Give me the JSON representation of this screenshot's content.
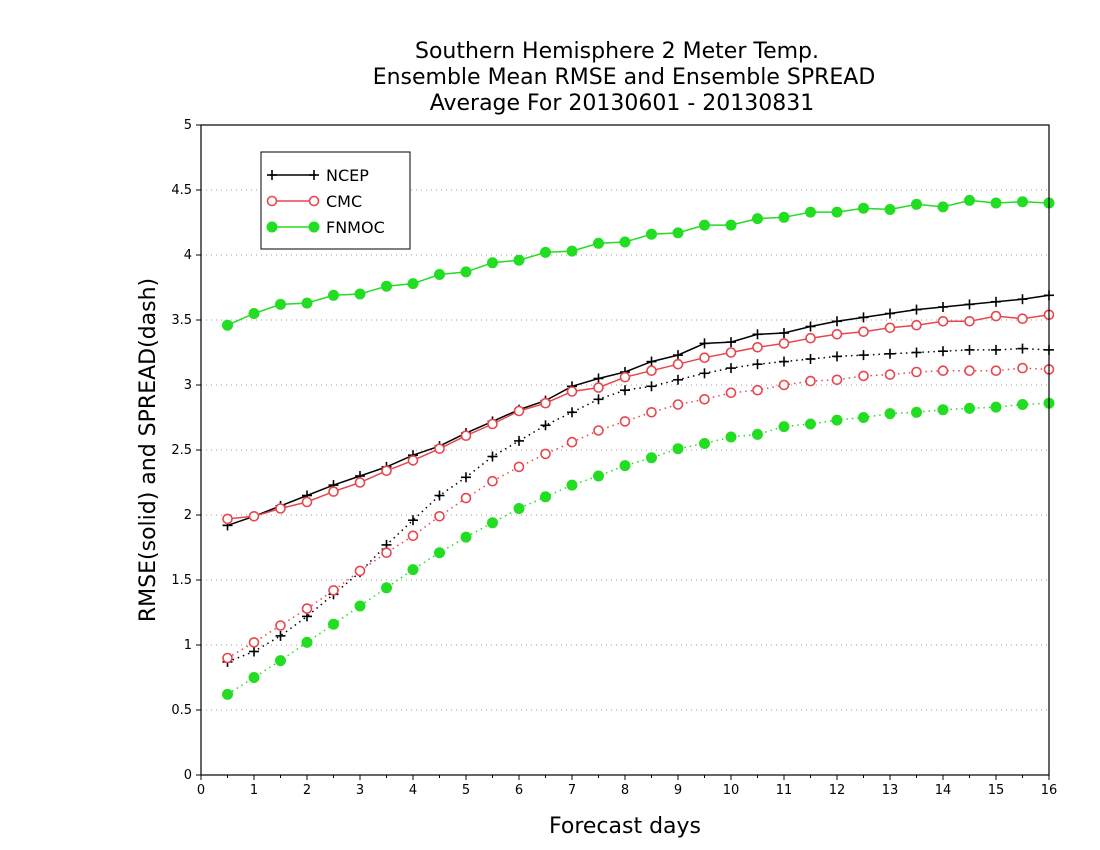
{
  "chart_data": {
    "type": "line",
    "title": [
      "Southern Hemisphere 2 Meter Temp.",
      "Ensemble Mean RMSE and Ensemble SPREAD",
      "Average For 20130601 - 20130831"
    ],
    "xlabel": "Forecast days",
    "ylabel": "RMSE(solid) and SPREAD(dash)",
    "xlim": [
      0,
      16
    ],
    "ylim": [
      0,
      5
    ],
    "xticks": [
      "0",
      "1",
      "2",
      "3",
      "4",
      "5",
      "6",
      "7",
      "8",
      "9",
      "10",
      "11",
      "12",
      "13",
      "14",
      "15",
      "16"
    ],
    "yticks": [
      "0",
      "0.5",
      "1",
      "1.5",
      "2",
      "2.5",
      "3",
      "3.5",
      "4",
      "4.5",
      "5"
    ],
    "grid": "horizontal-dotted",
    "legend_position": "top-left",
    "x": [
      0.5,
      1,
      1.5,
      2,
      2.5,
      3,
      3.5,
      4,
      4.5,
      5,
      5.5,
      6,
      6.5,
      7,
      7.5,
      8,
      8.5,
      9,
      9.5,
      10,
      10.5,
      11,
      11.5,
      12,
      12.5,
      13,
      13.5,
      14,
      14.5,
      15,
      15.5,
      16
    ],
    "series": [
      {
        "name": "NCEP",
        "color": "#000000",
        "marker": "plus",
        "style": "solid",
        "values": [
          1.92,
          1.99,
          2.07,
          2.15,
          2.23,
          2.3,
          2.37,
          2.46,
          2.53,
          2.63,
          2.72,
          2.81,
          2.88,
          2.99,
          3.05,
          3.1,
          3.18,
          3.23,
          3.32,
          3.33,
          3.39,
          3.4,
          3.45,
          3.49,
          3.52,
          3.55,
          3.58,
          3.6,
          3.62,
          3.64,
          3.66,
          3.69
        ]
      },
      {
        "name": "CMC",
        "color": "#e8464d",
        "marker": "open-circle",
        "style": "solid",
        "values": [
          1.97,
          1.99,
          2.05,
          2.1,
          2.18,
          2.25,
          2.34,
          2.42,
          2.51,
          2.61,
          2.7,
          2.8,
          2.86,
          2.95,
          2.98,
          3.06,
          3.11,
          3.16,
          3.21,
          3.25,
          3.29,
          3.32,
          3.36,
          3.39,
          3.41,
          3.44,
          3.46,
          3.49,
          3.49,
          3.53,
          3.51,
          3.54
        ]
      },
      {
        "name": "FNMOC",
        "color": "#22dd22",
        "marker": "filled-circle",
        "style": "solid",
        "values": [
          3.46,
          3.55,
          3.62,
          3.63,
          3.69,
          3.7,
          3.76,
          3.78,
          3.85,
          3.87,
          3.94,
          3.96,
          4.02,
          4.03,
          4.09,
          4.1,
          4.16,
          4.17,
          4.23,
          4.23,
          4.28,
          4.29,
          4.33,
          4.33,
          4.36,
          4.35,
          4.39,
          4.37,
          4.42,
          4.4,
          4.41,
          4.4
        ]
      },
      {
        "name": "NCEP",
        "color": "#000000",
        "marker": "plus",
        "style": "dotted",
        "values": [
          0.87,
          0.95,
          1.07,
          1.22,
          1.39,
          1.56,
          1.77,
          1.96,
          2.15,
          2.29,
          2.45,
          2.57,
          2.69,
          2.79,
          2.89,
          2.96,
          2.99,
          3.04,
          3.09,
          3.13,
          3.16,
          3.18,
          3.2,
          3.22,
          3.23,
          3.24,
          3.25,
          3.26,
          3.27,
          3.27,
          3.28,
          3.27
        ]
      },
      {
        "name": "CMC",
        "color": "#e8464d",
        "marker": "open-circle",
        "style": "dotted",
        "values": [
          0.9,
          1.02,
          1.15,
          1.28,
          1.42,
          1.57,
          1.71,
          1.84,
          1.99,
          2.13,
          2.26,
          2.37,
          2.47,
          2.56,
          2.65,
          2.72,
          2.79,
          2.85,
          2.89,
          2.94,
          2.96,
          3.0,
          3.03,
          3.04,
          3.07,
          3.08,
          3.1,
          3.11,
          3.11,
          3.11,
          3.13,
          3.12
        ]
      },
      {
        "name": "FNMOC",
        "color": "#22dd22",
        "marker": "filled-circle",
        "style": "dotted",
        "values": [
          0.62,
          0.75,
          0.88,
          1.02,
          1.16,
          1.3,
          1.44,
          1.58,
          1.71,
          1.83,
          1.94,
          2.05,
          2.14,
          2.23,
          2.3,
          2.38,
          2.44,
          2.51,
          2.55,
          2.6,
          2.62,
          2.68,
          2.7,
          2.73,
          2.75,
          2.78,
          2.79,
          2.81,
          2.82,
          2.83,
          2.85,
          2.86
        ]
      }
    ],
    "legend": [
      {
        "name": "NCEP",
        "color": "#000000",
        "marker": "plus"
      },
      {
        "name": "CMC",
        "color": "#e8464d",
        "marker": "open-circle"
      },
      {
        "name": "FNMOC",
        "color": "#22dd22",
        "marker": "filled-circle"
      }
    ]
  }
}
